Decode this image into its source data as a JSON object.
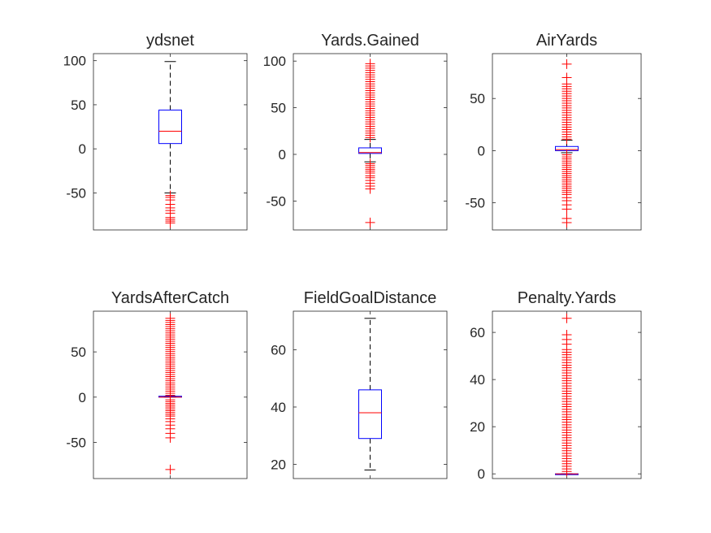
{
  "colors": {
    "box": "#0000ff",
    "median": "#ff0000",
    "whisker": "#000000",
    "outlier": "#ff0000",
    "axis": "#262626",
    "background": "#ffffff"
  },
  "chart_data": [
    {
      "type": "box",
      "title": "ydsnet",
      "ylim": [
        -92,
        108
      ],
      "yticks": [
        -50,
        0,
        50,
        100
      ],
      "ytick_labels": [
        "-50",
        "0",
        "50",
        "100"
      ],
      "box": {
        "q1": 6,
        "median": 20,
        "q3": 44,
        "whisker_low": -50,
        "whisker_high": 99
      },
      "outliers": [
        -53,
        -55,
        -58,
        -63,
        -67,
        -70,
        -73,
        -78,
        -80,
        -82,
        -84
      ]
    },
    {
      "type": "box",
      "title": "Yards.Gained",
      "ylim": [
        -81,
        108
      ],
      "yticks": [
        -50,
        0,
        50,
        100
      ],
      "ytick_labels": [
        "-50",
        "0",
        "50",
        "100"
      ],
      "box": {
        "q1": 1,
        "median": 2,
        "q3": 7,
        "whisker_low": -8,
        "whisker_high": 16
      },
      "outliers_dense": {
        "from": 18,
        "to": 99,
        "step": 2.4
      },
      "outliers": [
        -10,
        -12,
        -14,
        -16,
        -18,
        -20,
        -23,
        -25,
        -28,
        -31,
        -34,
        -37,
        -73
      ]
    },
    {
      "type": "box",
      "title": "AirYards",
      "ylim": [
        -76,
        93
      ],
      "yticks": [
        -50,
        0,
        50
      ],
      "ytick_labels": [
        "-50",
        "0",
        "50"
      ],
      "box": {
        "q1": 0,
        "median": 1,
        "q3": 4,
        "whisker_low": -2,
        "whisker_high": 10
      },
      "outliers_dense": {
        "from": 11,
        "to": 66,
        "step": 2.3
      },
      "outliers": [
        -4,
        -6,
        -8,
        -10,
        -12,
        -14,
        -16,
        -18,
        -20,
        -22,
        -24,
        -26,
        -28,
        -30,
        -32,
        -34,
        -36,
        -38,
        -40,
        -42,
        -45,
        -48,
        -52,
        -56,
        -65,
        -69,
        70,
        83
      ]
    },
    {
      "type": "box",
      "title": "YardsAfterCatch",
      "ylim": [
        -90,
        95
      ],
      "yticks": [
        -50,
        0,
        50
      ],
      "ytick_labels": [
        "-50",
        "0",
        "50"
      ],
      "box": {
        "q1": 0,
        "median": 0,
        "q3": 1,
        "whisker_low": 0,
        "whisker_high": 1
      },
      "outliers_dense": {
        "from": 2,
        "to": 88,
        "step": 2.3
      },
      "outliers": [
        -3,
        -5,
        -7,
        -9,
        -11,
        -13,
        -15,
        -17,
        -19,
        -21,
        -24,
        -27,
        -31,
        -35,
        -40,
        -45,
        -80
      ]
    },
    {
      "type": "box",
      "title": "FieldGoalDistance",
      "ylim": [
        15,
        73.5
      ],
      "yticks": [
        20,
        40,
        60
      ],
      "ytick_labels": [
        "20",
        "40",
        "60"
      ],
      "box": {
        "q1": 29,
        "median": 38,
        "q3": 46,
        "whisker_low": 18,
        "whisker_high": 71
      },
      "outliers": []
    },
    {
      "type": "box",
      "title": "Penalty.Yards",
      "ylim": [
        -2,
        69
      ],
      "yticks": [
        0,
        20,
        40,
        60
      ],
      "ytick_labels": [
        "0",
        "20",
        "40",
        "60"
      ],
      "box": {
        "q1": 0,
        "median": 0,
        "q3": 0,
        "whisker_low": 0,
        "whisker_high": 0
      },
      "outliers_dense": {
        "from": 1,
        "to": 53,
        "step": 1.1
      },
      "outliers": [
        55,
        57,
        59,
        66
      ]
    }
  ]
}
